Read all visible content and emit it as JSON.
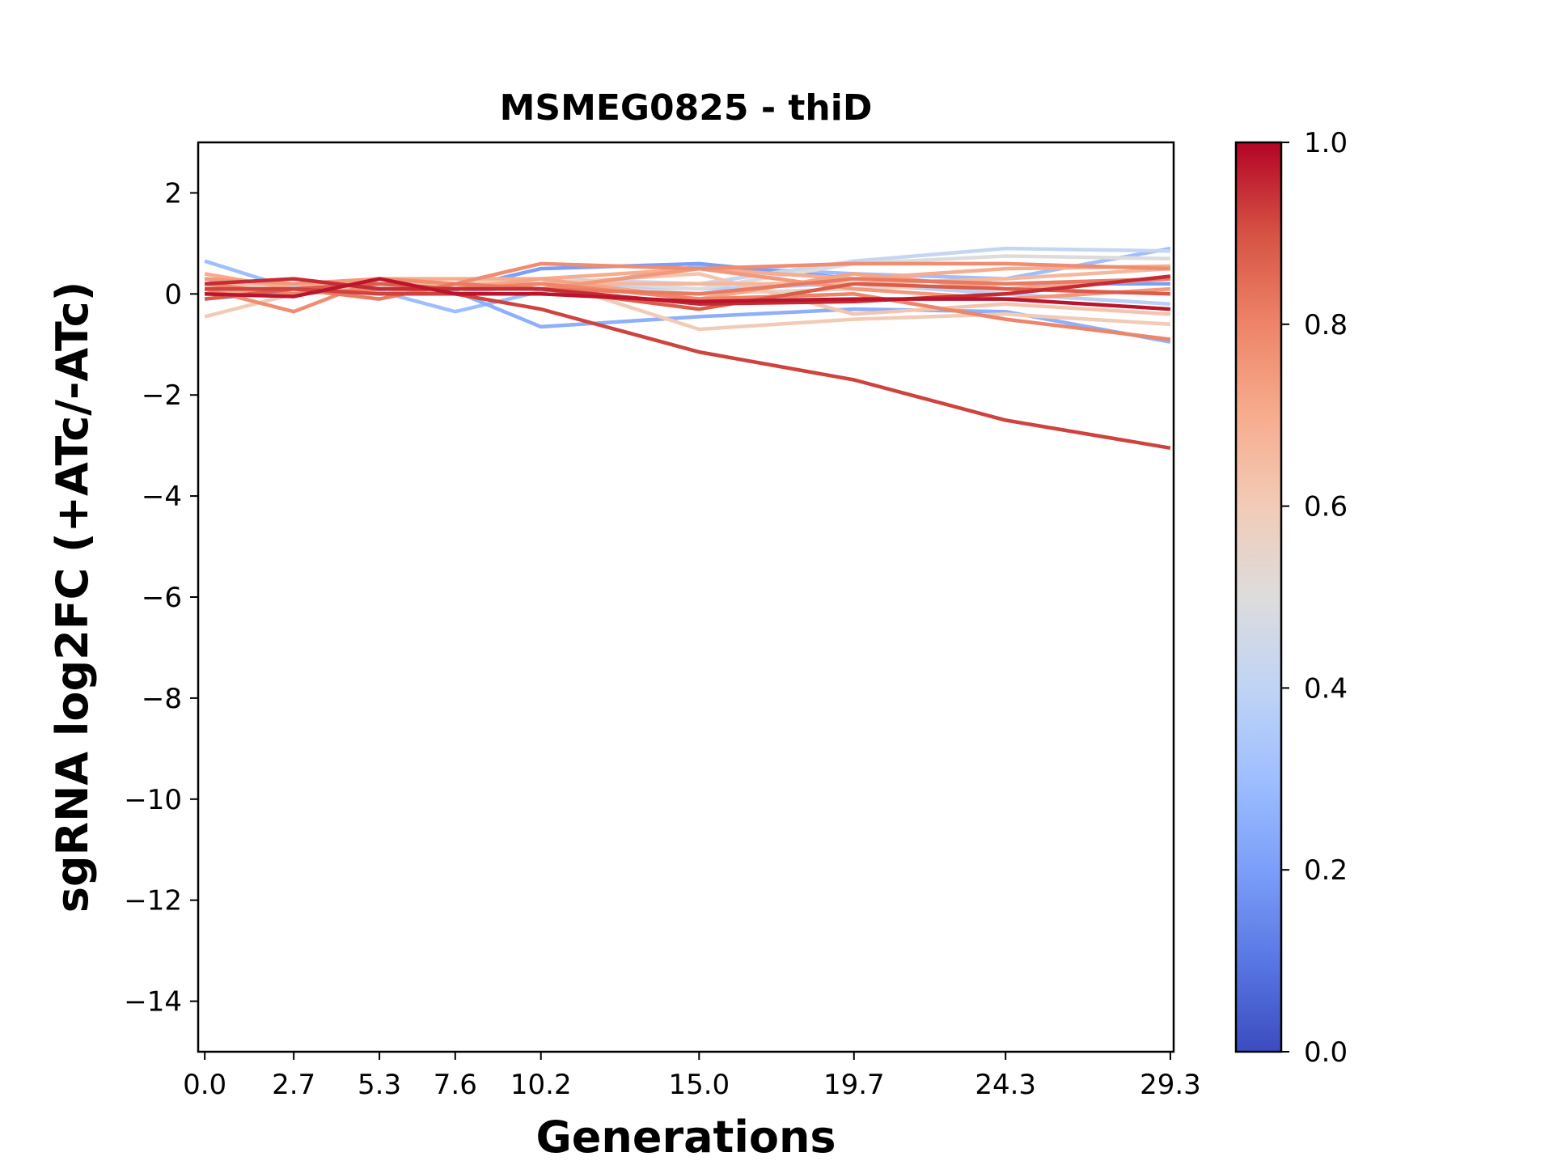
{
  "chart_data": {
    "type": "line",
    "title": "MSMEG0825 - thiD",
    "xlabel": "Generations",
    "ylabel": "sgRNA log2FC (+ATc/-ATc)",
    "x": [
      0.0,
      2.7,
      5.3,
      7.6,
      10.2,
      15.0,
      19.7,
      24.3,
      29.3
    ],
    "xtick_labels": [
      "0.0",
      "2.7",
      "5.3",
      "7.6",
      "10.2",
      "15.0",
      "19.7",
      "24.3",
      "29.3"
    ],
    "xlim": [
      -0.2,
      29.4
    ],
    "ylim": [
      -15,
      3
    ],
    "yticks": [
      2,
      0,
      -2,
      -4,
      -6,
      -8,
      -10,
      -12,
      -14
    ],
    "ytick_labels": [
      "2",
      "0",
      "−2",
      "−4",
      "−6",
      "−8",
      "−10",
      "−12",
      "−14"
    ],
    "grid": false,
    "legend": "none",
    "colorbar": {
      "range": [
        0.0,
        1.0
      ],
      "ticks": [
        0.0,
        0.2,
        0.4,
        0.6,
        0.8,
        1.0
      ],
      "tick_labels": [
        "0.0",
        "0.2",
        "0.4",
        "0.6",
        "0.8",
        "1.0"
      ],
      "colormap": "coolwarm"
    },
    "series": [
      {
        "color_value": 0.3,
        "values": [
          0.65,
          0.1,
          0.05,
          -0.35,
          0.05,
          0.55,
          0.4,
          0.3,
          0.9
        ]
      },
      {
        "color_value": 0.25,
        "values": [
          0.3,
          0.0,
          0.1,
          0.05,
          -0.65,
          -0.45,
          -0.3,
          -0.35,
          -0.95
        ]
      },
      {
        "color_value": 0.2,
        "values": [
          -0.1,
          0.05,
          0.1,
          0.1,
          0.5,
          0.6,
          0.3,
          0.2,
          0.2
        ]
      },
      {
        "color_value": 0.38,
        "values": [
          0.0,
          0.15,
          0.1,
          0.0,
          0.2,
          0.1,
          0.2,
          0.0,
          -0.2
        ]
      },
      {
        "color_value": 0.42,
        "values": [
          0.1,
          0.05,
          0.2,
          0.1,
          0.3,
          0.2,
          0.65,
          0.9,
          0.85
        ]
      },
      {
        "color_value": 0.5,
        "values": [
          0.2,
          0.1,
          0.15,
          0.2,
          0.3,
          0.1,
          0.6,
          0.75,
          0.7
        ]
      },
      {
        "color_value": 0.55,
        "values": [
          0.15,
          0.1,
          0.2,
          0.15,
          0.2,
          0.0,
          0.1,
          0.2,
          0.3
        ]
      },
      {
        "color_value": 0.6,
        "values": [
          -0.45,
          0.0,
          0.3,
          0.15,
          0.3,
          -0.7,
          -0.5,
          -0.4,
          -0.6
        ]
      },
      {
        "color_value": 0.62,
        "values": [
          0.0,
          0.1,
          0.1,
          0.1,
          0.2,
          0.4,
          -0.4,
          -0.2,
          -0.4
        ]
      },
      {
        "color_value": 0.66,
        "values": [
          0.2,
          0.2,
          0.2,
          0.2,
          0.2,
          0.2,
          0.2,
          0.3,
          0.5
        ]
      },
      {
        "color_value": 0.7,
        "values": [
          0.4,
          0.1,
          0.3,
          0.3,
          0.3,
          0.5,
          0.3,
          0.5,
          0.55
        ]
      },
      {
        "color_value": 0.72,
        "values": [
          0.0,
          0.1,
          0.0,
          0.1,
          0.3,
          -0.1,
          0.4,
          0.1,
          0.3
        ]
      },
      {
        "color_value": 0.75,
        "values": [
          0.3,
          0.2,
          0.3,
          0.2,
          0.1,
          0.5,
          0.1,
          -0.1,
          0.1
        ]
      },
      {
        "color_value": 0.78,
        "values": [
          0.1,
          -0.35,
          0.3,
          0.2,
          0.6,
          0.5,
          0.6,
          0.6,
          0.5
        ]
      },
      {
        "color_value": 0.8,
        "values": [
          0.2,
          0.0,
          0.1,
          0.1,
          0.2,
          -0.1,
          0.0,
          -0.5,
          -0.9
        ]
      },
      {
        "color_value": 0.82,
        "values": [
          0.1,
          0.1,
          -0.1,
          0.2,
          0.1,
          0.0,
          0.3,
          0.2,
          0.3
        ]
      },
      {
        "color_value": 0.88,
        "values": [
          -0.1,
          0.1,
          0.2,
          0.1,
          0.1,
          -0.3,
          0.2,
          0.1,
          0.0
        ]
      },
      {
        "color_value": 0.92,
        "values": [
          0.1,
          0.1,
          0.0,
          0.0,
          -0.3,
          -1.15,
          -1.7,
          -2.5,
          -3.05
        ]
      },
      {
        "color_value": 0.95,
        "values": [
          0.2,
          0.3,
          0.1,
          0.1,
          0.1,
          -0.2,
          -0.15,
          0.0,
          0.35
        ]
      },
      {
        "color_value": 0.98,
        "values": [
          0.0,
          -0.05,
          0.3,
          0.0,
          0.0,
          -0.15,
          -0.1,
          -0.1,
          -0.3
        ]
      }
    ]
  }
}
